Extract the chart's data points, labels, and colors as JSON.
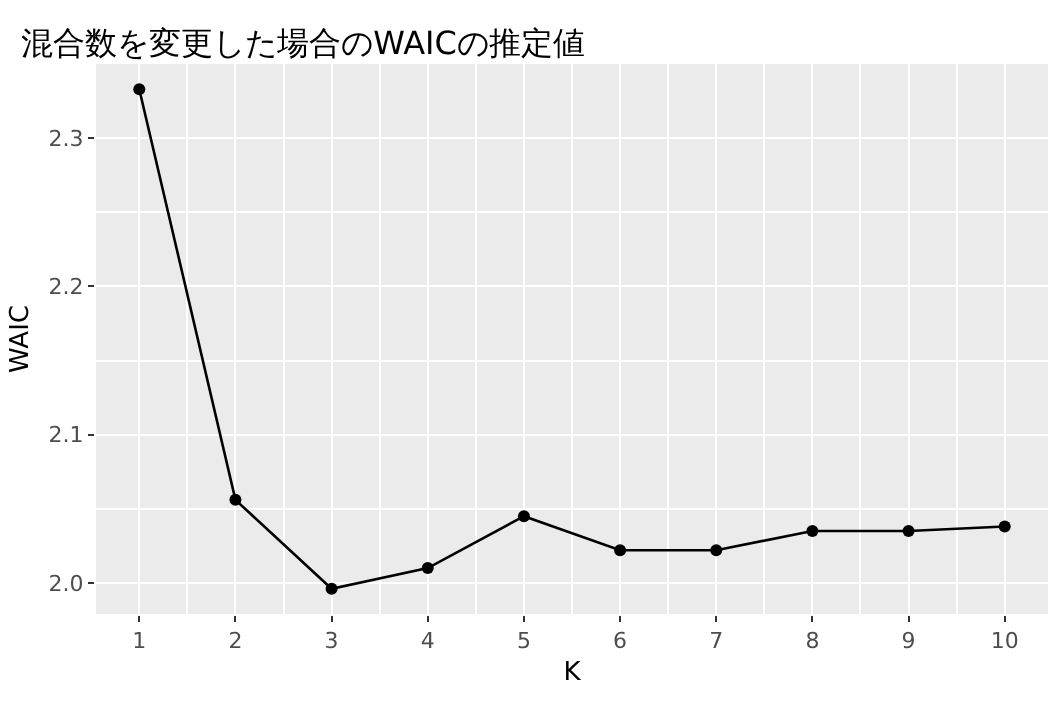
{
  "chart_data": {
    "type": "line",
    "title": "混合数を変更した場合のWAICの推定値",
    "xlabel": "K",
    "ylabel": "WAIC",
    "x": [
      1,
      2,
      3,
      4,
      5,
      6,
      7,
      8,
      9,
      10
    ],
    "series": [
      {
        "color": "#000000",
        "values": [
          2.333,
          2.056,
          1.996,
          2.01,
          2.045,
          2.022,
          2.022,
          2.035,
          2.035,
          2.038
        ]
      }
    ],
    "xlim": [
      0.55,
      10.45
    ],
    "xticks": [
      1,
      2,
      3,
      4,
      5,
      6,
      7,
      8,
      9,
      10
    ],
    "ylim": [
      1.979,
      2.35
    ],
    "yticks": [
      {
        "value": 2.0,
        "label": "2.0"
      },
      {
        "value": 2.1,
        "label": "2.1"
      },
      {
        "value": 2.2,
        "label": "2.2"
      },
      {
        "value": 2.3,
        "label": "2.3"
      }
    ],
    "grid": true,
    "marker": "circle",
    "line_style": "solid",
    "legend": false
  }
}
